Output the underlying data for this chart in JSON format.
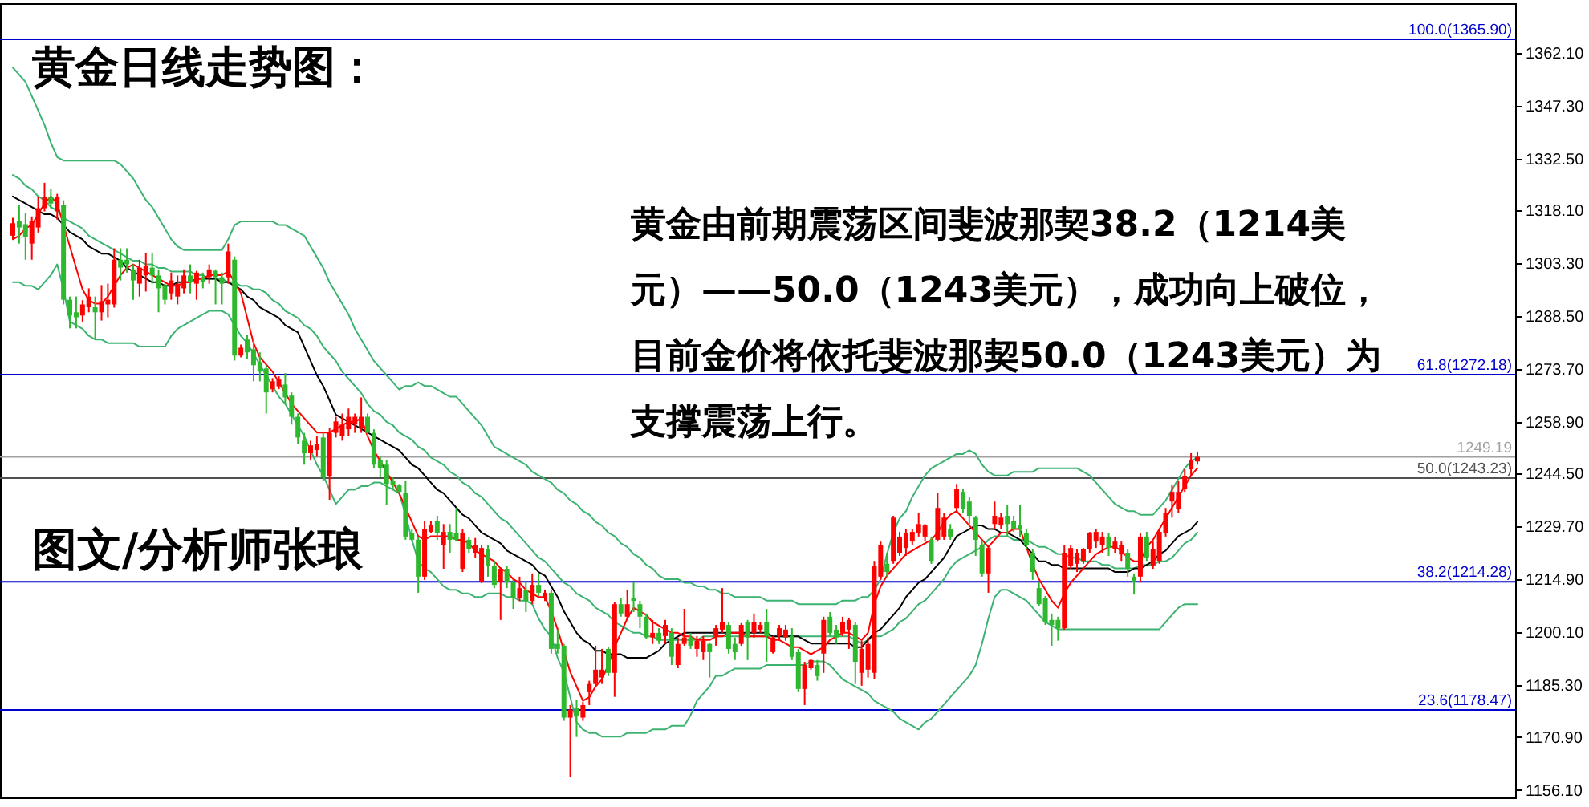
{
  "chart_data": {
    "type": "candlestick",
    "title": "黄金日线走势图：",
    "annotations": [
      "黄金由前期震荡区间斐波那契38.2（1214美元）——50.0（1243美元），成功向上破位，目前金价将依托斐波那契50.0（1243美元）为支撑震荡上行。",
      "图文/分析师张琅"
    ],
    "categories": [
      null,
      null,
      null,
      null,
      null,
      null,
      null,
      null,
      null,
      null,
      null,
      null,
      null,
      null,
      null,
      null,
      null,
      null,
      null,
      null,
      null,
      null,
      null,
      null,
      null,
      null,
      null,
      null,
      null,
      null,
      null,
      null,
      null,
      null,
      null,
      null,
      null,
      null,
      null,
      null,
      null,
      null,
      null,
      null,
      null,
      null,
      null,
      null,
      null,
      null,
      null,
      null,
      null,
      null,
      null,
      null,
      null,
      null,
      null,
      null,
      null,
      null,
      null,
      null,
      null,
      null,
      null,
      null,
      null,
      null,
      null,
      null,
      null,
      null,
      null,
      null,
      null,
      null,
      null,
      null,
      null,
      null,
      null,
      null,
      null,
      null,
      null,
      null,
      null,
      null,
      null,
      null,
      null,
      null,
      null,
      null,
      null,
      null,
      null,
      null,
      null,
      null,
      null,
      null,
      null,
      null,
      null,
      null,
      null,
      null,
      null,
      null,
      null,
      null,
      null,
      null,
      null,
      null,
      null,
      null,
      null,
      null,
      null,
      null,
      null,
      null,
      null,
      null,
      null,
      null,
      null,
      null,
      null,
      null,
      null,
      null,
      null,
      null,
      null,
      null,
      null,
      null,
      null,
      null,
      null,
      null,
      null,
      null,
      null,
      null,
      null,
      null,
      null,
      null,
      null,
      null,
      null,
      null,
      null,
      null,
      null,
      null,
      null,
      null,
      null,
      null,
      null,
      null,
      null,
      null,
      null,
      null,
      null,
      null,
      null,
      null,
      null,
      null,
      null,
      null,
      null,
      null,
      null,
      null,
      null,
      null,
      null,
      null
    ],
    "ohlc": [
      [
        1311.0,
        1316.0,
        1310.0,
        1314.5
      ],
      [
        1315.1,
        1319.6,
        1308.8,
        1313.3
      ],
      [
        1314.2,
        1317.3,
        1304.3,
        1310.6
      ],
      [
        1308.8,
        1316.4,
        1304.3,
        1315.1
      ],
      [
        1313.3,
        1321.8,
        1311.9,
        1318.7
      ],
      [
        1318.7,
        1325.8,
        1317.8,
        1321.8
      ],
      [
        1321.8,
        1324.0,
        1318.7,
        1320.0
      ],
      [
        1317.8,
        1322.7,
        1315.5,
        1321.8
      ],
      [
        1319.6,
        1320.9,
        1291.8,
        1293.1
      ],
      [
        1293.1,
        1294.0,
        1285.1,
        1288.7
      ],
      [
        1289.6,
        1294.0,
        1285.1,
        1288.2
      ],
      [
        1288.7,
        1293.0,
        1287.0,
        1291.8
      ],
      [
        1291.0,
        1296.3,
        1289.6,
        1294.0
      ],
      [
        1291.0,
        1294.0,
        1282.0,
        1289.6
      ],
      [
        1289.6,
        1297.2,
        1287.3,
        1292.7
      ],
      [
        1291.8,
        1297.6,
        1288.2,
        1293.1
      ],
      [
        1291.8,
        1307.5,
        1290.9,
        1304.3
      ],
      [
        1304.3,
        1307.5,
        1298.5,
        1302.1
      ],
      [
        1304.3,
        1307.5,
        1300.7,
        1303.0
      ],
      [
        1301.6,
        1303.0,
        1293.1,
        1298.5
      ],
      [
        1297.6,
        1304.3,
        1294.0,
        1302.1
      ],
      [
        1299.9,
        1306.1,
        1295.4,
        1302.5
      ],
      [
        1302.1,
        1306.1,
        1297.6,
        1299.9
      ],
      [
        1299.9,
        1301.6,
        1289.6,
        1296.3
      ],
      [
        1297.2,
        1297.6,
        1291.8,
        1293.1
      ],
      [
        1294.9,
        1300.7,
        1293.1,
        1298.5
      ],
      [
        1294.0,
        1299.9,
        1291.8,
        1297.6
      ],
      [
        1296.3,
        1301.6,
        1294.9,
        1299.9
      ],
      [
        1299.9,
        1303.0,
        1294.9,
        1298.1
      ],
      [
        1297.6,
        1301.2,
        1293.1,
        1300.7
      ],
      [
        1299.4,
        1300.7,
        1296.3,
        1298.1
      ],
      [
        1299.4,
        1303.0,
        1297.6,
        1301.6
      ],
      [
        1301.2,
        1301.6,
        1291.8,
        1299.4
      ],
      [
        1299.4,
        1300.7,
        1291.8,
        1297.6
      ],
      [
        1299.4,
        1308.8,
        1297.6,
        1306.6
      ],
      [
        1304.3,
        1305.2,
        1276.1,
        1277.5
      ],
      [
        1277.5,
        1280.6,
        1277.0,
        1279.7
      ],
      [
        1282.0,
        1283.3,
        1276.6,
        1278.4
      ],
      [
        1279.3,
        1281.9,
        1270.3,
        1274.8
      ],
      [
        1275.7,
        1278.4,
        1270.3,
        1273.0
      ],
      [
        1273.9,
        1274.8,
        1261.3,
        1267.2
      ],
      [
        1268.1,
        1271.2,
        1267.2,
        1270.3
      ],
      [
        1268.9,
        1271.7,
        1268.1,
        1270.8
      ],
      [
        1269.4,
        1272.6,
        1264.0,
        1265.8
      ],
      [
        1266.3,
        1267.2,
        1258.2,
        1260.4
      ],
      [
        1260.4,
        1261.3,
        1252.8,
        1254.6
      ],
      [
        1253.7,
        1255.9,
        1247.0,
        1250.2
      ],
      [
        1250.2,
        1253.7,
        1248.4,
        1252.4
      ],
      [
        1251.1,
        1255.0,
        1249.2,
        1252.8
      ],
      [
        1254.6,
        1255.9,
        1242.5,
        1243.4
      ],
      [
        1243.9,
        1257.3,
        1237.2,
        1255.9
      ],
      [
        1255.9,
        1260.4,
        1254.6,
        1259.1
      ],
      [
        1255.0,
        1261.3,
        1253.7,
        1258.2
      ],
      [
        1256.9,
        1262.7,
        1255.0,
        1260.4
      ],
      [
        1258.2,
        1261.3,
        1255.9,
        1260.4
      ],
      [
        1257.3,
        1265.8,
        1255.9,
        1260.4
      ],
      [
        1260.4,
        1261.3,
        1254.6,
        1255.9
      ],
      [
        1255.9,
        1256.9,
        1246.1,
        1247.0
      ],
      [
        1248.4,
        1249.2,
        1243.4,
        1246.1
      ],
      [
        1247.0,
        1248.4,
        1235.8,
        1241.6
      ],
      [
        1242.5,
        1243.4,
        1240.3,
        1241.2
      ],
      [
        1241.2,
        1241.6,
        1239.0,
        1239.4
      ],
      [
        1239.0,
        1242.5,
        1226.0,
        1226.9
      ],
      [
        1227.8,
        1229.1,
        1225.5,
        1226.0
      ],
      [
        1226.0,
        1226.9,
        1211.2,
        1215.7
      ],
      [
        1215.7,
        1231.3,
        1214.8,
        1229.1
      ],
      [
        1228.2,
        1231.3,
        1227.8,
        1230.0
      ],
      [
        1231.3,
        1232.7,
        1226.0,
        1227.8
      ],
      [
        1224.6,
        1230.4,
        1217.9,
        1228.2
      ],
      [
        1228.2,
        1230.4,
        1222.4,
        1226.0
      ],
      [
        1227.8,
        1234.9,
        1225.5,
        1226.0
      ],
      [
        1217.9,
        1229.1,
        1217.0,
        1227.8
      ],
      [
        1226.0,
        1226.9,
        1222.4,
        1223.3
      ],
      [
        1222.4,
        1226.5,
        1221.0,
        1224.6
      ],
      [
        1214.3,
        1224.6,
        1213.9,
        1223.7
      ],
      [
        1223.3,
        1224.6,
        1215.7,
        1218.8
      ],
      [
        1218.8,
        1220.1,
        1212.5,
        1213.4
      ],
      [
        1214.3,
        1218.3,
        1203.6,
        1217.9
      ],
      [
        1217.9,
        1218.8,
        1212.5,
        1214.3
      ],
      [
        1214.3,
        1214.8,
        1206.7,
        1209.8
      ],
      [
        1209.8,
        1215.7,
        1208.9,
        1212.5
      ],
      [
        1212.1,
        1214.3,
        1205.8,
        1208.9
      ],
      [
        1208.9,
        1216.6,
        1208.0,
        1213.4
      ],
      [
        1213.4,
        1216.6,
        1210.3,
        1211.2
      ],
      [
        1209.8,
        1212.1,
        1208.9,
        1211.2
      ],
      [
        1211.2,
        1212.1,
        1194.2,
        1195.5
      ],
      [
        1196.9,
        1200.9,
        1194.2,
        1195.5
      ],
      [
        1196.4,
        1196.9,
        1175.4,
        1176.3
      ],
      [
        1176.3,
        1179.8,
        1159.7,
        1178.5
      ],
      [
        1178.9,
        1181.2,
        1170.9,
        1176.7
      ],
      [
        1176.3,
        1180.7,
        1175.4,
        1179.8
      ],
      [
        1183.4,
        1186.6,
        1179.8,
        1185.7
      ],
      [
        1185.7,
        1196.4,
        1185.2,
        1189.7
      ],
      [
        1187.5,
        1195.5,
        1185.7,
        1189.7
      ],
      [
        1195.5,
        1196.0,
        1187.9,
        1188.8
      ],
      [
        1188.8,
        1208.5,
        1182.1,
        1208.0
      ],
      [
        1208.0,
        1209.8,
        1204.5,
        1205.4
      ],
      [
        1204.5,
        1212.1,
        1204.0,
        1208.0
      ],
      [
        1209.8,
        1214.3,
        1205.8,
        1208.9
      ],
      [
        1208.0,
        1208.9,
        1201.3,
        1204.5
      ],
      [
        1204.5,
        1205.4,
        1198.3,
        1198.7
      ],
      [
        1198.7,
        1203.6,
        1196.9,
        1200.0
      ],
      [
        1200.0,
        1201.3,
        1196.9,
        1197.8
      ],
      [
        1199.1,
        1203.6,
        1196.9,
        1202.2
      ],
      [
        1200.0,
        1201.3,
        1191.0,
        1193.3
      ],
      [
        1191.0,
        1198.7,
        1190.1,
        1196.9
      ],
      [
        1196.9,
        1206.7,
        1196.4,
        1198.7
      ],
      [
        1198.7,
        1200.0,
        1195.5,
        1196.4
      ],
      [
        1195.5,
        1199.1,
        1193.3,
        1197.8
      ],
      [
        1194.6,
        1199.1,
        1192.4,
        1197.8
      ],
      [
        1196.9,
        1197.3,
        1187.5,
        1194.6
      ],
      [
        1199.1,
        1202.2,
        1196.4,
        1201.3
      ],
      [
        1200.9,
        1212.5,
        1200.0,
        1203.1
      ],
      [
        1202.2,
        1203.1,
        1194.2,
        1195.5
      ],
      [
        1196.9,
        1198.7,
        1192.4,
        1194.6
      ],
      [
        1196.9,
        1202.7,
        1196.4,
        1202.2
      ],
      [
        1203.1,
        1203.6,
        1192.4,
        1198.7
      ],
      [
        1200.0,
        1205.4,
        1198.7,
        1203.1
      ],
      [
        1200.9,
        1203.1,
        1200.0,
        1202.2
      ],
      [
        1203.1,
        1206.7,
        1191.9,
        1199.1
      ],
      [
        1194.6,
        1199.1,
        1194.2,
        1198.7
      ],
      [
        1199.1,
        1202.2,
        1197.8,
        1201.3
      ],
      [
        1198.7,
        1202.2,
        1197.8,
        1200.9
      ],
      [
        1199.1,
        1201.3,
        1192.4,
        1193.3
      ],
      [
        1194.6,
        1195.5,
        1183.4,
        1184.3
      ],
      [
        1184.3,
        1191.9,
        1179.8,
        1191.0
      ],
      [
        1190.1,
        1192.8,
        1189.7,
        1192.4
      ],
      [
        1191.0,
        1192.4,
        1186.6,
        1187.9
      ],
      [
        1194.2,
        1204.5,
        1188.8,
        1203.6
      ],
      [
        1204.5,
        1205.8,
        1199.1,
        1200.0
      ],
      [
        1200.9,
        1202.2,
        1196.9,
        1198.7
      ],
      [
        1200.0,
        1204.5,
        1199.1,
        1203.1
      ],
      [
        1200.9,
        1204.0,
        1195.5,
        1203.6
      ],
      [
        1202.2,
        1203.1,
        1185.7,
        1191.9
      ],
      [
        1188.8,
        1197.8,
        1185.2,
        1195.5
      ],
      [
        1189.7,
        1198.7,
        1187.5,
        1196.9
      ],
      [
        1188.8,
        1220.1,
        1187.0,
        1218.8
      ],
      [
        1215.7,
        1225.5,
        1214.8,
        1224.6
      ],
      [
        1219.3,
        1222.4,
        1215.7,
        1217.0
      ],
      [
        1220.1,
        1232.7,
        1219.3,
        1232.2
      ],
      [
        1222.4,
        1228.2,
        1221.5,
        1226.9
      ],
      [
        1223.7,
        1229.1,
        1221.5,
        1227.8
      ],
      [
        1225.5,
        1229.1,
        1224.6,
        1228.2
      ],
      [
        1227.8,
        1233.6,
        1226.9,
        1230.4
      ],
      [
        1226.9,
        1230.4,
        1225.5,
        1230.0
      ],
      [
        1226.0,
        1226.9,
        1219.3,
        1220.1
      ],
      [
        1226.0,
        1239.0,
        1225.5,
        1234.9
      ],
      [
        1226.9,
        1233.6,
        1226.0,
        1232.2
      ],
      [
        1229.1,
        1230.4,
        1226.0,
        1226.9
      ],
      [
        1234.9,
        1241.6,
        1233.6,
        1240.3
      ],
      [
        1239.4,
        1240.3,
        1233.6,
        1234.5
      ],
      [
        1236.7,
        1238.1,
        1230.4,
        1232.7
      ],
      [
        1232.2,
        1232.7,
        1221.5,
        1226.0
      ],
      [
        1224.6,
        1225.5,
        1215.7,
        1216.6
      ],
      [
        1216.6,
        1224.6,
        1211.2,
        1223.7
      ],
      [
        1230.4,
        1236.7,
        1229.1,
        1232.7
      ],
      [
        1230.0,
        1233.6,
        1229.1,
        1232.2
      ],
      [
        1232.7,
        1235.8,
        1226.9,
        1230.4
      ],
      [
        1231.3,
        1232.7,
        1228.2,
        1229.1
      ],
      [
        1230.0,
        1235.8,
        1226.9,
        1229.1
      ],
      [
        1227.8,
        1229.1,
        1223.3,
        1224.6
      ],
      [
        1222.4,
        1223.3,
        1214.8,
        1217.0
      ],
      [
        1212.5,
        1214.3,
        1207.6,
        1208.0
      ],
      [
        1209.8,
        1210.3,
        1202.2,
        1203.1
      ],
      [
        1203.6,
        1205.4,
        1196.4,
        1202.2
      ],
      [
        1203.6,
        1204.5,
        1197.8,
        1201.3
      ],
      [
        1201.3,
        1224.6,
        1200.9,
        1222.4
      ],
      [
        1218.8,
        1224.6,
        1217.9,
        1223.7
      ],
      [
        1219.3,
        1223.3,
        1217.0,
        1222.4
      ],
      [
        1220.1,
        1223.7,
        1219.3,
        1223.3
      ],
      [
        1223.3,
        1228.2,
        1222.4,
        1227.8
      ],
      [
        1225.5,
        1229.1,
        1223.7,
        1228.2
      ],
      [
        1224.6,
        1228.2,
        1222.4,
        1226.9
      ],
      [
        1226.9,
        1227.8,
        1221.5,
        1223.7
      ],
      [
        1223.3,
        1226.9,
        1222.4,
        1225.5
      ],
      [
        1221.9,
        1225.5,
        1220.1,
        1224.6
      ],
      [
        1222.4,
        1223.3,
        1215.7,
        1217.9
      ],
      [
        1215.7,
        1216.6,
        1210.7,
        1214.3
      ],
      [
        1215.7,
        1227.8,
        1214.3,
        1226.9
      ],
      [
        1226.9,
        1228.2,
        1220.1,
        1221.0
      ],
      [
        1218.8,
        1225.5,
        1217.9,
        1223.3
      ],
      [
        1220.1,
        1229.1,
        1219.3,
        1228.2
      ],
      [
        1227.8,
        1234.9,
        1226.9,
        1233.6
      ],
      [
        1236.7,
        1241.2,
        1232.2,
        1239.4
      ],
      [
        1234.5,
        1242.5,
        1233.6,
        1239.4
      ],
      [
        1240.3,
        1245.7,
        1239.4,
        1243.9
      ],
      [
        1245.7,
        1250.2,
        1243.9,
        1248.4
      ],
      [
        1247.9,
        1250.6,
        1247.0,
        1249.2
      ]
    ],
    "colors": [
      "#ff0000",
      "#2eb82e",
      "#2eb82e",
      "#ff0000",
      "#ff0000",
      "#ff0000",
      "#2eb82e",
      "#ff0000",
      "#2eb82e",
      "#2eb82e",
      "#2eb82e",
      "#ff0000",
      "#ff0000",
      "#2eb82e",
      "#ff0000",
      "#ff0000",
      "#ff0000",
      "#2eb82e",
      "#2eb82e",
      "#2eb82e",
      "#ff0000",
      "#ff0000",
      "#2eb82e",
      "#2eb82e",
      "#2eb82e",
      "#ff0000",
      "#ff0000",
      "#ff0000",
      "#2eb82e",
      "#ff0000",
      "#2eb82e",
      "#ff0000",
      "#2eb82e",
      "#2eb82e",
      "#ff0000",
      "#2eb82e",
      "#ff0000",
      "#2eb82e",
      "#2eb82e",
      "#2eb82e",
      "#2eb82e",
      "#ff0000",
      "#ff0000",
      "#2eb82e",
      "#2eb82e",
      "#2eb82e",
      "#2eb82e",
      "#ff0000",
      "#ff0000",
      "#2eb82e",
      "#ff0000",
      "#ff0000",
      "#ff0000",
      "#ff0000",
      "#ff0000",
      "#ff0000",
      "#2eb82e",
      "#2eb82e",
      "#2eb82e",
      "#2eb82e",
      "#2eb82e",
      "#2eb82e",
      "#2eb82e",
      "#2eb82e",
      "#2eb82e",
      "#ff0000",
      "#ff0000",
      "#2eb82e",
      "#ff0000",
      "#2eb82e",
      "#2eb82e",
      "#ff0000",
      "#2eb82e",
      "#ff0000",
      "#ff0000",
      "#2eb82e",
      "#2eb82e",
      "#ff0000",
      "#2eb82e",
      "#2eb82e",
      "#ff0000",
      "#2eb82e",
      "#ff0000",
      "#2eb82e",
      "#ff0000",
      "#2eb82e",
      "#2eb82e",
      "#2eb82e",
      "#ff0000",
      "#2eb82e",
      "#ff0000",
      "#ff0000",
      "#ff0000",
      "#ff0000",
      "#2eb82e",
      "#ff0000",
      "#2eb82e",
      "#ff0000",
      "#2eb82e",
      "#2eb82e",
      "#2eb82e",
      "#ff0000",
      "#2eb82e",
      "#ff0000",
      "#2eb82e",
      "#ff0000",
      "#ff0000",
      "#2eb82e",
      "#ff0000",
      "#ff0000",
      "#2eb82e",
      "#ff0000",
      "#ff0000",
      "#2eb82e",
      "#2eb82e",
      "#ff0000",
      "#2eb82e",
      "#ff0000",
      "#ff0000",
      "#2eb82e",
      "#ff0000",
      "#ff0000",
      "#ff0000",
      "#2eb82e",
      "#2eb82e",
      "#ff0000",
      "#ff0000",
      "#2eb82e",
      "#ff0000",
      "#2eb82e",
      "#2eb82e",
      "#ff0000",
      "#ff0000",
      "#2eb82e",
      "#ff0000",
      "#ff0000",
      "#ff0000",
      "#ff0000",
      "#2eb82e",
      "#ff0000",
      "#ff0000",
      "#ff0000",
      "#ff0000",
      "#ff0000",
      "#ff0000",
      "#2eb82e",
      "#ff0000",
      "#ff0000",
      "#2eb82e",
      "#ff0000",
      "#2eb82e",
      "#2eb82e",
      "#2eb82e",
      "#2eb82e",
      "#ff0000",
      "#ff0000",
      "#ff0000",
      "#2eb82e",
      "#2eb82e",
      "#2eb82e",
      "#2eb82e",
      "#2eb82e",
      "#2eb82e",
      "#2eb82e",
      "#2eb82e",
      "#2eb82e",
      "#ff0000",
      "#ff0000",
      "#ff0000",
      "#ff0000",
      "#ff0000",
      "#ff0000",
      "#ff0000",
      "#2eb82e",
      "#ff0000",
      "#ff0000",
      "#2eb82e",
      "#2eb82e",
      "#ff0000",
      "#2eb82e",
      "#ff0000",
      "#ff0000",
      "#ff0000",
      "#ff0000",
      "#ff0000",
      "#ff0000",
      "#ff0000",
      "#ff0000"
    ],
    "series": [
      {
        "type": "line",
        "color": "#3cb371",
        "values": [
          1358,
          1356,
          1354,
          1350,
          1346,
          1342,
          1337,
          1333,
          1332,
          1332,
          1332,
          1332,
          1332,
          1332,
          1332,
          1332,
          1332,
          1331,
          1329,
          1327,
          1324,
          1321,
          1319,
          1316,
          1313,
          1310,
          1308,
          1307,
          1307,
          1307,
          1307,
          1307,
          1307,
          1307,
          1310,
          1314,
          1315,
          1315,
          1315,
          1315,
          1315,
          1315,
          1314,
          1314,
          1313,
          1312,
          1311,
          1308,
          1305,
          1302,
          1298,
          1295,
          1292,
          1289,
          1285,
          1282,
          1279,
          1276,
          1274,
          1272,
          1270,
          1268,
          1269,
          1269,
          1270,
          1269,
          1269,
          1268,
          1267,
          1266,
          1266,
          1264,
          1262,
          1260,
          1258,
          1255,
          1252,
          1251,
          1250,
          1249,
          1248,
          1247,
          1245,
          1244,
          1243,
          1242,
          1240,
          1239,
          1237,
          1236,
          1234,
          1233,
          1231,
          1230,
          1228,
          1227,
          1225,
          1224,
          1222,
          1221,
          1219,
          1218,
          1216,
          1215,
          1215,
          1215,
          1214,
          1214,
          1213,
          1213,
          1212,
          1212,
          1211,
          1211,
          1210,
          1210,
          1210,
          1210,
          1210,
          1209,
          1209,
          1209,
          1209,
          1209,
          1208,
          1208,
          1208,
          1208,
          1208,
          1208,
          1208,
          1209,
          1209,
          1209,
          1210,
          1210,
          1212,
          1215,
          1222,
          1228,
          1232,
          1234,
          1238,
          1241,
          1244,
          1246,
          1247,
          1248,
          1249,
          1250,
          1250,
          1251,
          1250,
          1247,
          1245,
          1244,
          1244,
          1244,
          1245,
          1245,
          1245,
          1245,
          1246,
          1246,
          1246,
          1246,
          1246,
          1246,
          1246,
          1245,
          1244,
          1242,
          1240,
          1238,
          1236,
          1235,
          1234,
          1234,
          1233,
          1233,
          1233,
          1235,
          1237,
          1240,
          1243,
          1246,
          1248,
          1249
        ]
      },
      {
        "type": "line",
        "color": "#3cb371",
        "values": [
          1328,
          1327,
          1325,
          1324,
          1322,
          1321,
          1319,
          1318,
          1316,
          1315,
          1314,
          1313,
          1311,
          1310,
          1309,
          1308,
          1307,
          1306,
          1305,
          1304,
          1304,
          1303,
          1303,
          1302,
          1302,
          1301,
          1301,
          1301,
          1301,
          1300,
          1300,
          1299,
          1299,
          1299,
          1298,
          1298,
          1297,
          1297,
          1296,
          1296,
          1295,
          1293,
          1292,
          1290,
          1289,
          1288,
          1286,
          1285,
          1283,
          1280,
          1278,
          1276,
          1273,
          1271,
          1269,
          1267,
          1264,
          1262,
          1261,
          1259,
          1258,
          1256,
          1255,
          1254,
          1252,
          1251,
          1249,
          1248,
          1247,
          1245,
          1244,
          1242,
          1241,
          1239,
          1238,
          1236,
          1234,
          1232,
          1231,
          1229,
          1227,
          1225,
          1223,
          1221,
          1220,
          1218,
          1216,
          1214,
          1213,
          1211,
          1210,
          1209,
          1207,
          1206,
          1205,
          1203,
          1202,
          1201,
          1200,
          1200,
          1199,
          1199,
          1198,
          1198,
          1198,
          1198,
          1198,
          1198,
          1198,
          1199,
          1199,
          1199,
          1199,
          1199,
          1199,
          1199,
          1199,
          1199,
          1199,
          1199,
          1199,
          1199,
          1199,
          1199,
          1199,
          1199,
          1199,
          1199,
          1199,
          1199,
          1199,
          1199,
          1199,
          1198,
          1197,
          1198,
          1199,
          1199,
          1200,
          1201,
          1203,
          1204,
          1206,
          1208,
          1209,
          1211,
          1213,
          1215,
          1218,
          1220,
          1221,
          1222,
          1223,
          1224,
          1226,
          1227,
          1227,
          1227,
          1226,
          1226,
          1226,
          1225,
          1224,
          1224,
          1223,
          1222,
          1222,
          1221,
          1221,
          1220,
          1220,
          1220,
          1219,
          1219,
          1218,
          1218,
          1218,
          1218,
          1219,
          1219,
          1219,
          1220,
          1220,
          1221,
          1223,
          1225,
          1226,
          1228
        ]
      },
      {
        "type": "line",
        "color": "#3cb371",
        "values": [
          1298,
          1298,
          1297,
          1297,
          1296,
          1298,
          1300,
          1303,
          1296,
          1287,
          1286,
          1285,
          1283,
          1282,
          1282,
          1281,
          1281,
          1281,
          1281,
          1281,
          1280,
          1280,
          1280,
          1280,
          1280,
          1283,
          1285,
          1286,
          1287,
          1288,
          1289,
          1290,
          1290,
          1290,
          1289,
          1286,
          1283,
          1281,
          1278,
          1275,
          1272,
          1269,
          1266,
          1264,
          1261,
          1258,
          1255,
          1251,
          1247,
          1244,
          1240,
          1236,
          1238,
          1240,
          1240,
          1241,
          1241,
          1242,
          1242,
          1241,
          1240,
          1239,
          1233,
          1226,
          1220,
          1218,
          1217,
          1215,
          1213,
          1212,
          1212,
          1211,
          1211,
          1210,
          1210,
          1211,
          1211,
          1211,
          1210,
          1210,
          1209,
          1209,
          1208,
          1204,
          1201,
          1199,
          1193,
          1189,
          1182,
          1175,
          1173,
          1172,
          1172,
          1171,
          1171,
          1171,
          1171,
          1172,
          1172,
          1172,
          1172,
          1173,
          1173,
          1173,
          1174,
          1174,
          1174,
          1177,
          1181,
          1183,
          1185,
          1188,
          1188,
          1189,
          1190,
          1190,
          1190,
          1190,
          1190,
          1191,
          1191,
          1191,
          1191,
          1191,
          1191,
          1191,
          1192,
          1192,
          1192,
          1191,
          1189,
          1187,
          1186,
          1185,
          1184,
          1183,
          1181,
          1180,
          1179,
          1178,
          1176,
          1175,
          1174,
          1173,
          1175,
          1176,
          1178,
          1180,
          1182,
          1184,
          1186,
          1188,
          1191,
          1197,
          1204,
          1210,
          1212,
          1212,
          1211,
          1210,
          1209,
          1207,
          1205,
          1203,
          1202,
          1201,
          1201,
          1201,
          1201,
          1201,
          1201,
          1201,
          1201,
          1201,
          1201,
          1201,
          1201,
          1201,
          1201,
          1201,
          1201,
          1201,
          1203,
          1205,
          1207,
          1208,
          1208,
          1208
        ]
      },
      {
        "type": "line",
        "color": "#000000",
        "values": [
          1322,
          1321,
          1320,
          1319,
          1318,
          1317,
          1317,
          1316,
          1314,
          1312,
          1311,
          1310,
          1308,
          1307,
          1306,
          1306,
          1305,
          1304,
          1302,
          1301,
          1300,
          1299,
          1298,
          1298,
          1297,
          1297,
          1298,
          1298,
          1298,
          1299,
          1299,
          1299,
          1299,
          1298,
          1298,
          1297,
          1296,
          1294,
          1293,
          1291,
          1290,
          1289,
          1288,
          1286,
          1285,
          1284,
          1280,
          1276,
          1272,
          1269,
          1265,
          1261,
          1260,
          1259,
          1258,
          1257,
          1256,
          1255,
          1254,
          1253,
          1252,
          1251,
          1249,
          1247,
          1246,
          1244,
          1242,
          1240,
          1239,
          1237,
          1235,
          1233,
          1232,
          1230,
          1228,
          1227,
          1226,
          1225,
          1223,
          1222,
          1221,
          1220,
          1219,
          1217,
          1216,
          1213,
          1210,
          1206,
          1203,
          1200,
          1198,
          1197,
          1195,
          1195,
          1194,
          1194,
          1194,
          1193,
          1193,
          1193,
          1193,
          1194,
          1195,
          1197,
          1198,
          1199,
          1200,
          1200,
          1200,
          1200,
          1200,
          1200,
          1200,
          1200,
          1200,
          1200,
          1200,
          1200,
          1200,
          1200,
          1199,
          1199,
          1199,
          1199,
          1199,
          1198,
          1197,
          1197,
          1197,
          1197,
          1197,
          1197,
          1197,
          1196,
          1196,
          1198,
          1200,
          1201,
          1203,
          1205,
          1207,
          1210,
          1212,
          1214,
          1215,
          1217,
          1219,
          1221,
          1224,
          1227,
          1228,
          1229,
          1230,
          1230,
          1229,
          1229,
          1228,
          1228,
          1227,
          1226,
          1224,
          1222,
          1220,
          1220,
          1219,
          1219,
          1218,
          1218,
          1218,
          1218,
          1218,
          1218,
          1218,
          1218,
          1217,
          1217,
          1217,
          1218,
          1218,
          1219,
          1220,
          1222,
          1223,
          1225,
          1227,
          1228,
          1229,
          1231
        ]
      },
      {
        "type": "line",
        "color": "#ff0000",
        "values": [
          1310,
          1311,
          1313,
          1314,
          1317,
          1320,
          1322,
          1320,
          1314,
          1308,
          1302,
          1296,
          1293,
          1292,
          1292,
          1294,
          1297,
          1300,
          1302,
          1303,
          1302,
          1301,
          1300,
          1299,
          1298,
          1297,
          1297,
          1298,
          1298,
          1299,
          1299,
          1300,
          1300,
          1300,
          1301,
          1298,
          1295,
          1288,
          1281,
          1277,
          1275,
          1273,
          1270,
          1267,
          1264,
          1262,
          1260,
          1258,
          1256,
          1256,
          1256,
          1257,
          1258,
          1259,
          1259,
          1260,
          1255,
          1251,
          1248,
          1245,
          1242,
          1239,
          1235,
          1231,
          1227,
          1226,
          1227,
          1227,
          1227,
          1227,
          1226,
          1226,
          1225,
          1223,
          1222,
          1221,
          1220,
          1218,
          1217,
          1215,
          1214,
          1212,
          1211,
          1210,
          1210,
          1206,
          1201,
          1195,
          1189,
          1185,
          1181,
          1182,
          1185,
          1187,
          1191,
          1196,
          1200,
          1204,
          1207,
          1206,
          1205,
          1203,
          1202,
          1201,
          1200,
          1200,
          1199,
          1199,
          1198,
          1198,
          1198,
          1199,
          1199,
          1200,
          1200,
          1200,
          1199,
          1199,
          1199,
          1199,
          1198,
          1198,
          1197,
          1196,
          1196,
          1195,
          1194,
          1195,
          1196,
          1198,
          1199,
          1200,
          1200,
          1199,
          1198,
          1200,
          1208,
          1213,
          1216,
          1218,
          1220,
          1222,
          1223,
          1224,
          1225,
          1226,
          1228,
          1231,
          1233,
          1234,
          1232,
          1230,
          1228,
          1226,
          1224,
          1226,
          1228,
          1228,
          1229,
          1229,
          1224,
          1219,
          1215,
          1212,
          1209,
          1207,
          1211,
          1214,
          1216,
          1218,
          1220,
          1222,
          1223,
          1224,
          1224,
          1223,
          1221,
          1220,
          1220,
          1224,
          1226,
          1229,
          1232,
          1235,
          1238,
          1241,
          1244,
          1246
        ]
      }
    ],
    "ylim": [
      1154,
      1376
    ],
    "yticks": [
      {
        "value": 1362.1,
        "label": "1362.10"
      },
      {
        "value": 1347.3,
        "label": "1347.30"
      },
      {
        "value": 1332.5,
        "label": "1332.50"
      },
      {
        "value": 1318.1,
        "label": "1318.10"
      },
      {
        "value": 1303.3,
        "label": "1303.30"
      },
      {
        "value": 1288.5,
        "label": "1288.50"
      },
      {
        "value": 1273.7,
        "label": "1273.70"
      },
      {
        "value": 1258.9,
        "label": "1258.90"
      },
      {
        "value": 1244.5,
        "label": "1244.50"
      },
      {
        "value": 1229.7,
        "label": "1229.70"
      },
      {
        "value": 1214.9,
        "label": "1214.90"
      },
      {
        "value": 1200.1,
        "label": "1200.10"
      },
      {
        "value": 1185.3,
        "label": "1185.30"
      },
      {
        "value": 1170.9,
        "label": "1170.90"
      },
      {
        "value": 1156.1,
        "label": "1156.10"
      }
    ],
    "ref_lines": [
      {
        "axis": "y",
        "value": 1365.9,
        "label": "100.0(1365.90)",
        "color": "#0000cd"
      },
      {
        "axis": "y",
        "value": 1272.18,
        "label": "61.8(1272.18)",
        "color": "#0000cd"
      },
      {
        "axis": "y",
        "value": 1249.19,
        "label": "1249.19",
        "color": "#a0a0a0"
      },
      {
        "axis": "y",
        "value": 1243.23,
        "label": "50.0(1243.23)",
        "color": "#505050"
      },
      {
        "axis": "y",
        "value": 1214.28,
        "label": "38.2(1214.28)",
        "color": "#0000cd"
      },
      {
        "axis": "y",
        "value": 1178.47,
        "label": "23.6(1178.47)",
        "color": "#0000cd"
      }
    ],
    "tick_labels": "y"
  }
}
